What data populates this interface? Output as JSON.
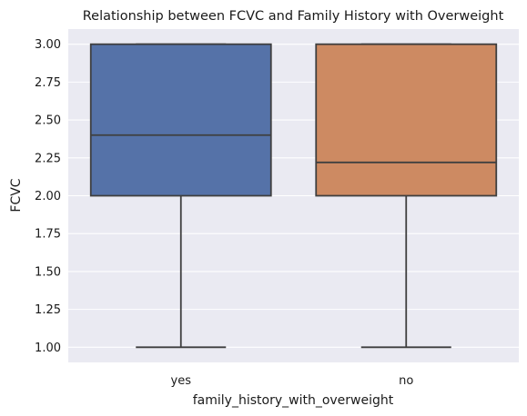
{
  "chart_data": {
    "type": "box",
    "title": "Relationship between FCVC and Family History with Overweight",
    "xlabel": "family_history_with_overweight",
    "ylabel": "FCVC",
    "ylim": [
      0.9,
      3.1
    ],
    "yticks": [
      1.0,
      1.25,
      1.5,
      1.75,
      2.0,
      2.25,
      2.5,
      2.75,
      3.0
    ],
    "ytick_labels": [
      "1.00",
      "1.25",
      "1.50",
      "1.75",
      "2.00",
      "2.25",
      "2.50",
      "2.75",
      "3.00"
    ],
    "grid": true,
    "categories": [
      "yes",
      "no"
    ],
    "boxes": [
      {
        "category": "yes",
        "whisker_low": 1.0,
        "q1": 2.0,
        "median": 2.4,
        "q3": 3.0,
        "whisker_high": 3.0,
        "color": "#5572a8"
      },
      {
        "category": "no",
        "whisker_low": 1.0,
        "q1": 2.0,
        "median": 2.22,
        "q3": 3.0,
        "whisker_high": 3.0,
        "color": "#cd8a62"
      }
    ],
    "colors": {
      "background": "#eaeaf2",
      "grid": "#ffffff",
      "line": "#3f3f3f"
    }
  }
}
